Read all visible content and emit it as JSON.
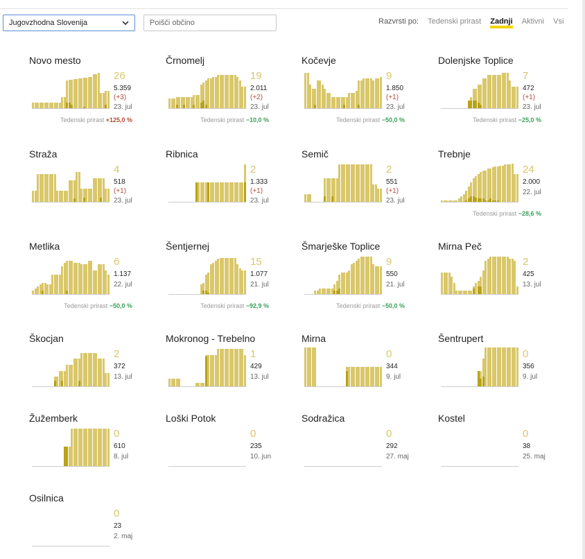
{
  "region_select": {
    "value": "Jugovzhodna Slovenija"
  },
  "search": {
    "placeholder": "Poišči občino"
  },
  "sort": {
    "label": "Razvrsti po:",
    "options": [
      "Tedenski prirast",
      "Zadnji",
      "Aktivni",
      "Vsi"
    ],
    "active": "Zadnji"
  },
  "colors": {
    "bar_light": "#d9c76a",
    "bar_dark": "#b8a217",
    "negative": "#3aa05a",
    "positive": "#b24a3a",
    "accent": "#f2d400"
  },
  "weekly_label": "Tedenski prirast",
  "municipalities": [
    {
      "name": "Novo mesto",
      "active": "26",
      "total": "5.359",
      "delta": "(+3)",
      "date": "23. jul",
      "weekly": "+125,0 %",
      "weekly_sign": "pos",
      "series": [
        0.15,
        0.15,
        0.15,
        0.15,
        0.15,
        0.15,
        0.15,
        0.15,
        0.15,
        0.15,
        0.15,
        0.15,
        0.3,
        0.3,
        0.7,
        0.72,
        0.72,
        0.74,
        0.74,
        0.76,
        0.76,
        0.78,
        0.78,
        0.8,
        0.8,
        0.86,
        0.86,
        0.9,
        0.4,
        0.4,
        0.45,
        0.45
      ],
      "dark": [
        0,
        0,
        0,
        0,
        0,
        0,
        0,
        0,
        0,
        0,
        0,
        0,
        0,
        0,
        0.15,
        0.15,
        0.1,
        0,
        0,
        0,
        0,
        0.05,
        0,
        0,
        0,
        0,
        0,
        0,
        0,
        0,
        0.1,
        0
      ]
    },
    {
      "name": "Črnomelj",
      "active": "19",
      "total": "2.011",
      "delta": "(+2)",
      "date": "23. jul",
      "weekly": "−10,0 %",
      "weekly_sign": "neg",
      "series": [
        0.25,
        0.25,
        0.25,
        0.3,
        0.3,
        0.3,
        0.3,
        0.3,
        0.3,
        0.3,
        0.35,
        0.35,
        0.35,
        0.6,
        0.65,
        0.7,
        0.75,
        0.75,
        0.8,
        0.8,
        0.85,
        0.85,
        0.85,
        0.85,
        0.85,
        0.85,
        0.85,
        0.85,
        0.8,
        0.7,
        0.55,
        0.55
      ],
      "dark": [
        0,
        0,
        0,
        0.1,
        0,
        0,
        0.1,
        0,
        0,
        0,
        0.1,
        0,
        0,
        0.15,
        0.2,
        0.1,
        0,
        0,
        0,
        0,
        0,
        0,
        0,
        0,
        0,
        0,
        0,
        0,
        0,
        0,
        0,
        0
      ]
    },
    {
      "name": "Kočevje",
      "active": "9",
      "total": "1.850",
      "delta": "(+1)",
      "date": "23. jul",
      "weekly": "−50,0 %",
      "weekly_sign": "neg",
      "series": [
        0.9,
        0.9,
        0.6,
        0.5,
        0.5,
        0.7,
        0.7,
        0.6,
        0.5,
        0.4,
        0.4,
        0.3,
        0.3,
        0.3,
        0.3,
        0.3,
        0.3,
        0.3,
        0.4,
        0.4,
        0.4,
        0.45,
        0.7,
        0.7,
        0.75,
        0.75,
        0.75,
        0.75,
        0.7,
        0.75,
        0.75,
        0.8
      ],
      "dark": [
        0,
        0,
        0,
        0,
        0.1,
        0,
        0,
        0,
        0,
        0,
        0,
        0,
        0,
        0,
        0,
        0,
        0.1,
        0,
        0,
        0,
        0,
        0,
        0.1,
        0,
        0,
        0,
        0,
        0,
        0,
        0,
        0,
        0
      ]
    },
    {
      "name": "Dolenjske Toplice",
      "active": "7",
      "total": "472",
      "delta": "(+1)",
      "date": "23. jul",
      "weekly": "−25,0 %",
      "weekly_sign": "neg",
      "series": [
        0,
        0,
        0,
        0,
        0,
        0,
        0,
        0,
        0,
        0,
        0,
        0.2,
        0.3,
        0.5,
        0.5,
        0.6,
        0.6,
        0.75,
        0.75,
        0.85,
        0.85,
        0.85,
        0.85,
        0.85,
        0.85,
        0.9,
        0.9,
        0.9,
        0.7,
        0.55,
        0.55,
        0.55
      ],
      "dark": [
        0,
        0,
        0,
        0,
        0,
        0,
        0,
        0,
        0,
        0,
        0,
        0.2,
        0.2,
        0.2,
        0.2,
        0.15,
        0.1,
        0,
        0,
        0,
        0,
        0,
        0,
        0,
        0,
        0,
        0,
        0,
        0,
        0,
        0,
        0
      ]
    },
    {
      "name": "Straža",
      "active": "4",
      "total": "518",
      "delta": "(+1)",
      "date": "23. jul",
      "weekly": "",
      "weekly_sign": "",
      "series": [
        0.3,
        0.3,
        0.7,
        0.7,
        0.7,
        0.7,
        0.7,
        0.7,
        0.7,
        0.7,
        0.3,
        0.3,
        0.3,
        0.3,
        0.3,
        0.55,
        0.55,
        0.55,
        0.75,
        0.75,
        0.35,
        0.35,
        0.35,
        0.35,
        0.35,
        0.6,
        0.6,
        0.6,
        0.6,
        0.6,
        0.35,
        0.35
      ],
      "dark": [
        0,
        0,
        0,
        0,
        0,
        0,
        0,
        0,
        0,
        0,
        0,
        0,
        0,
        0,
        0,
        0,
        0,
        0.1,
        0,
        0,
        0,
        0.12,
        0,
        0,
        0,
        0,
        0,
        0,
        0.12,
        0,
        0,
        0
      ]
    },
    {
      "name": "Ribnica",
      "active": "2",
      "total": "1.333",
      "delta": "(+1)",
      "date": "23. jul",
      "weekly": "",
      "weekly_sign": "",
      "series": [
        0,
        0,
        0,
        0,
        0,
        0,
        0,
        0,
        0,
        0,
        0,
        0.5,
        0.5,
        0.5,
        0.5,
        0.5,
        0.5,
        0.5,
        0.5,
        0.5,
        0.5,
        0.5,
        0.5,
        0.5,
        0.5,
        0.5,
        0.5,
        0.5,
        0.5,
        0.5,
        0.5,
        0.95
      ],
      "dark": [
        0,
        0,
        0,
        0,
        0,
        0,
        0,
        0,
        0,
        0,
        0,
        0.5,
        0,
        0,
        0,
        0,
        0.5,
        0,
        0,
        0,
        0,
        0,
        0,
        0,
        0,
        0,
        0,
        0,
        0,
        0,
        0,
        0.5
      ]
    },
    {
      "name": "Semič",
      "active": "2",
      "total": "551",
      "delta": "(+1)",
      "date": "23. jul",
      "weekly": "",
      "weekly_sign": "",
      "series": [
        0.2,
        0.2,
        0.2,
        0,
        0,
        0,
        0,
        0,
        0.6,
        0.6,
        0.6,
        0.6,
        0.6,
        0.6,
        0.95,
        0.95,
        0.95,
        0.95,
        0.95,
        0.95,
        0.95,
        0.95,
        0.95,
        0.95,
        0.95,
        0.95,
        0.95,
        0.95,
        0.45,
        0.45,
        0.35,
        0.35
      ],
      "dark": [
        0,
        0,
        0,
        0,
        0,
        0,
        0,
        0,
        0.15,
        0,
        0,
        0.15,
        0,
        0,
        0,
        0,
        0,
        0,
        0,
        0,
        0,
        0,
        0,
        0,
        0,
        0,
        0,
        0,
        0,
        0,
        0,
        0
      ]
    },
    {
      "name": "Trebnje",
      "active": "24",
      "total": "2.000",
      "delta": "",
      "date": "22. jul",
      "weekly": "−28,6 %",
      "weekly_sign": "neg",
      "series": [
        0.05,
        0.05,
        0.05,
        0.05,
        0.05,
        0.05,
        0.05,
        0.1,
        0.15,
        0.2,
        0.3,
        0.4,
        0.5,
        0.6,
        0.65,
        0.7,
        0.75,
        0.8,
        0.8,
        0.85,
        0.85,
        0.88,
        0.9,
        0.9,
        0.92,
        0.92,
        0.95,
        0.95,
        0.95,
        0.97,
        0.7,
        0.7
      ],
      "dark": [
        0,
        0,
        0,
        0,
        0,
        0,
        0,
        0,
        0,
        0,
        0.05,
        0.1,
        0.15,
        0.15,
        0.12,
        0.1,
        0.1,
        0.1,
        0.05,
        0.05,
        0.1,
        0.05,
        0.05,
        0.05,
        0,
        0,
        0,
        0,
        0,
        0,
        0,
        0
      ]
    },
    {
      "name": "Metlika",
      "active": "6",
      "total": "1.137",
      "delta": "",
      "date": "22. jul",
      "weekly": "−50,0 %",
      "weekly_sign": "neg",
      "series": [
        0.1,
        0.15,
        0.2,
        0.25,
        0.3,
        0.3,
        0.25,
        0.25,
        0.5,
        0.5,
        0.5,
        0.5,
        0.7,
        0.8,
        0.85,
        0.85,
        0.85,
        0.8,
        0.8,
        0.8,
        0.75,
        0.75,
        0.75,
        0.85,
        0.85,
        0.6,
        0.6,
        0.75,
        0.75,
        0.75,
        0.6,
        0.5
      ],
      "dark": [
        0,
        0,
        0,
        0,
        0.1,
        0,
        0,
        0,
        0,
        0,
        0,
        0,
        0,
        0,
        0.1,
        0,
        0,
        0,
        0,
        0,
        0,
        0,
        0,
        0,
        0,
        0,
        0,
        0,
        0,
        0,
        0,
        0
      ]
    },
    {
      "name": "Šentjernej",
      "active": "15",
      "total": "1.077",
      "delta": "",
      "date": "21. jul",
      "weekly": "−92,9 %",
      "weekly_sign": "neg",
      "series": [
        0,
        0,
        0,
        0,
        0,
        0,
        0,
        0,
        0,
        0,
        0,
        0,
        0,
        0.25,
        0.3,
        0.5,
        0.55,
        0.75,
        0.8,
        0.85,
        0.9,
        0.92,
        0.92,
        0.92,
        0.92,
        0.92,
        0.92,
        0.92,
        0.75,
        0.65,
        0.6,
        0.6
      ],
      "dark": [
        0,
        0,
        0,
        0,
        0,
        0,
        0,
        0,
        0,
        0,
        0,
        0,
        0,
        0,
        0.1,
        0.1,
        0.05,
        0,
        0,
        0,
        0,
        0,
        0,
        0,
        0,
        0,
        0,
        0,
        0,
        0,
        0,
        0
      ]
    },
    {
      "name": "Šmarješke Toplice",
      "active": "9",
      "total": "550",
      "delta": "",
      "date": "21. jul",
      "weekly": "−50,0 %",
      "weekly_sign": "neg",
      "series": [
        0,
        0,
        0,
        0,
        0.1,
        0.1,
        0.15,
        0.15,
        0.15,
        0.15,
        0.15,
        0.15,
        0.25,
        0.35,
        0.5,
        0.55,
        0.55,
        0.55,
        0.6,
        0.75,
        0.8,
        0.85,
        0.9,
        0.95,
        0.95,
        0.95,
        0.95,
        0.95,
        0.75,
        0.7,
        0.7,
        0.7
      ],
      "dark": [
        0,
        0,
        0,
        0,
        0,
        0,
        0,
        0,
        0,
        0,
        0,
        0,
        0.1,
        0.1,
        0.15,
        0,
        0,
        0,
        0,
        0,
        0,
        0,
        0,
        0,
        0,
        0,
        0,
        0,
        0,
        0,
        0,
        0
      ]
    },
    {
      "name": "Mirna Peč",
      "active": "2",
      "total": "425",
      "delta": "",
      "date": "13. jul",
      "weekly": "",
      "weekly_sign": "",
      "series": [
        0.55,
        0.55,
        0.55,
        0.55,
        0.45,
        0.3,
        0.1,
        0.1,
        0.1,
        0.1,
        0.1,
        0.1,
        0.1,
        0.2,
        0.3,
        0.35,
        0.45,
        0.6,
        0.85,
        0.9,
        0.95,
        0.95,
        0.95,
        0.95,
        0.95,
        0.95,
        0.95,
        0.95,
        0.9,
        0.9,
        0.85,
        0.2
      ],
      "dark": [
        0,
        0,
        0,
        0,
        0,
        0,
        0,
        0,
        0,
        0,
        0,
        0,
        0,
        0.15,
        0,
        0.2,
        0.2,
        0,
        0,
        0,
        0,
        0,
        0,
        0,
        0,
        0,
        0,
        0,
        0,
        0,
        0,
        0
      ]
    },
    {
      "name": "Škocjan",
      "active": "2",
      "total": "372",
      "delta": "",
      "date": "13. jul",
      "weekly": "",
      "weekly_sign": "",
      "series": [
        0,
        0,
        0,
        0,
        0,
        0,
        0,
        0,
        0,
        0.25,
        0.25,
        0.4,
        0.4,
        0.4,
        0.55,
        0.55,
        0.55,
        0.7,
        0.7,
        0.7,
        0.85,
        0.85,
        0.85,
        0.85,
        0.85,
        0.85,
        0.85,
        0.7,
        0.7,
        0.7,
        0.35,
        0.35
      ],
      "dark": [
        0,
        0,
        0,
        0,
        0,
        0,
        0,
        0,
        0,
        0.15,
        0,
        0,
        0.15,
        0,
        0,
        0,
        0,
        0,
        0,
        0.15,
        0,
        0,
        0,
        0,
        0,
        0,
        0,
        0,
        0,
        0,
        0,
        0
      ]
    },
    {
      "name": "Mokronog - Trebelno",
      "active": "1",
      "total": "429",
      "delta": "",
      "date": "13. jul",
      "weekly": "",
      "weekly_sign": "",
      "series": [
        0.2,
        0.2,
        0.2,
        0.2,
        0.2,
        0,
        0,
        0,
        0,
        0,
        0,
        0.1,
        0.1,
        0.1,
        0.1,
        0.8,
        0.8,
        0.8,
        0.8,
        0.8,
        0.95,
        0.95,
        0.95,
        0.95,
        0.95,
        0.95,
        0.95,
        0.95,
        0.95,
        0.95,
        0.95,
        0.8
      ],
      "dark": [
        0,
        0,
        0,
        0,
        0,
        0,
        0,
        0,
        0,
        0,
        0,
        0,
        0,
        0,
        0,
        0.75,
        0,
        0,
        0,
        0,
        0,
        0,
        0,
        0,
        0,
        0,
        0,
        0,
        0,
        0,
        0,
        0
      ]
    },
    {
      "name": "Mirna",
      "active": "0",
      "total": "344",
      "delta": "",
      "date": "9. jul",
      "weekly": "",
      "weekly_sign": "",
      "series": [
        0.98,
        0.98,
        0.98,
        0.98,
        0.98,
        0,
        0,
        0,
        0,
        0,
        0,
        0,
        0,
        0,
        0,
        0,
        0,
        0.5,
        0.5,
        0.5,
        0.5,
        0.5,
        0.5,
        0.5,
        0.5,
        0.5,
        0.5,
        0.5,
        0.5,
        0.5,
        0.5,
        0.5
      ],
      "dark": [
        0,
        0,
        0,
        0,
        0,
        0,
        0,
        0,
        0,
        0,
        0,
        0,
        0,
        0,
        0,
        0,
        0,
        0.4,
        0,
        0,
        0,
        0,
        0,
        0,
        0,
        0,
        0,
        0,
        0,
        0,
        0,
        0
      ]
    },
    {
      "name": "Šentrupert",
      "active": "0",
      "total": "356",
      "delta": "",
      "date": "9. jul",
      "weekly": "",
      "weekly_sign": "",
      "series": [
        0,
        0,
        0,
        0,
        0,
        0,
        0,
        0,
        0,
        0,
        0,
        0,
        0,
        0,
        0,
        0.4,
        0.4,
        0.7,
        0.98,
        0.98,
        0.98,
        0.98,
        0.98,
        0.98,
        0.98,
        0.98,
        0.98,
        0.98,
        0.98,
        0.98,
        0.98,
        0.98
      ],
      "dark": [
        0,
        0,
        0,
        0,
        0,
        0,
        0,
        0,
        0,
        0,
        0,
        0,
        0,
        0,
        0,
        0.4,
        0.2,
        0.25,
        0,
        0,
        0,
        0,
        0,
        0,
        0,
        0,
        0,
        0,
        0,
        0,
        0,
        0
      ]
    },
    {
      "name": "Žužemberk",
      "active": "0",
      "total": "610",
      "delta": "",
      "date": "8. jul",
      "weekly": "",
      "weekly_sign": "",
      "series": [
        0,
        0,
        0,
        0,
        0,
        0,
        0,
        0,
        0,
        0,
        0,
        0,
        0,
        0.5,
        0.5,
        0.5,
        0.95,
        0.95,
        0.95,
        0.95,
        0.95,
        0.95,
        0.95,
        0.95,
        0.95,
        0.95,
        0.95,
        0.95,
        0.95,
        0.95,
        0.95,
        0.95
      ],
      "dark": [
        0,
        0,
        0,
        0,
        0,
        0,
        0,
        0,
        0,
        0,
        0,
        0,
        0,
        0.5,
        0.5,
        0,
        0,
        0,
        0,
        0,
        0,
        0,
        0,
        0,
        0,
        0,
        0,
        0,
        0,
        0,
        0,
        0
      ]
    },
    {
      "name": "Loški Potok",
      "active": "0",
      "total": "235",
      "delta": "",
      "date": "10. jun",
      "weekly": "",
      "weekly_sign": "",
      "series": [],
      "dark": []
    },
    {
      "name": "Sodražica",
      "active": "0",
      "total": "292",
      "delta": "",
      "date": "27. maj",
      "weekly": "",
      "weekly_sign": "",
      "series": [],
      "dark": []
    },
    {
      "name": "Kostel",
      "active": "0",
      "total": "38",
      "delta": "",
      "date": "25. maj",
      "weekly": "",
      "weekly_sign": "",
      "series": [],
      "dark": []
    },
    {
      "name": "Osilnica",
      "active": "0",
      "total": "23",
      "delta": "",
      "date": "2. maj",
      "weekly": "",
      "weekly_sign": "",
      "series": [],
      "dark": []
    }
  ]
}
